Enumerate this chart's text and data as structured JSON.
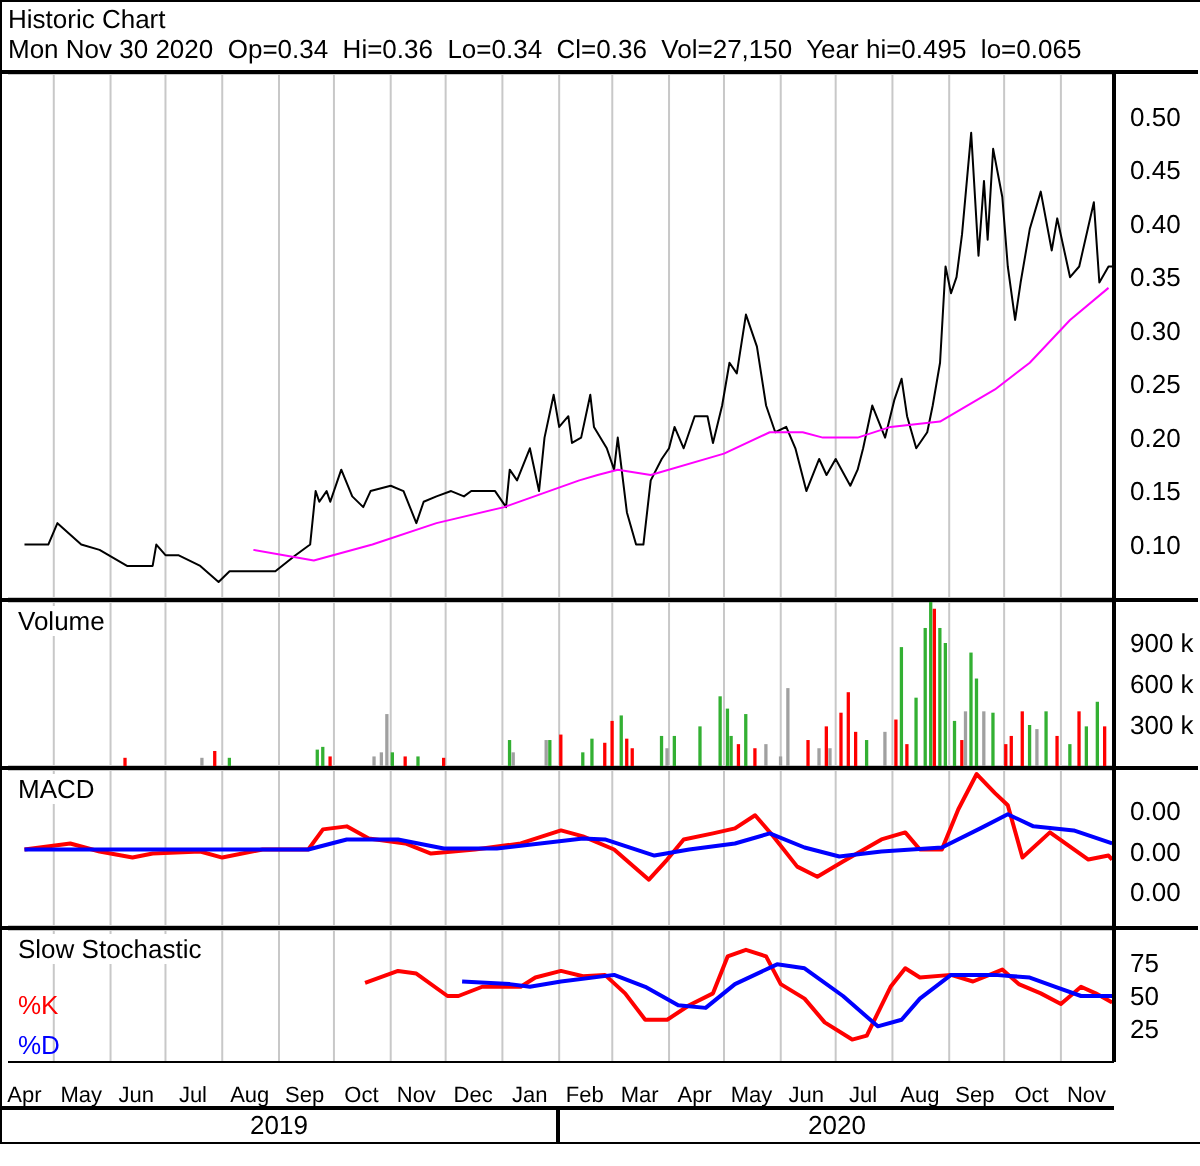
{
  "chart_data": [
    {
      "type": "line",
      "title": "Historic Chart",
      "subtitle": "Mon Nov 30 2020  Op=0.34  Hi=0.36  Lo=0.34  Cl=0.36  Vol=27,150  Year hi=0.495  lo=0.065",
      "grid": true,
      "tick_labels": "y",
      "xlim": [
        "2019-04-06",
        "2020-11-30"
      ],
      "xticks": [
        {
          "value": "2019-05-01",
          "label": null
        },
        {
          "value": "2019-06-01",
          "label": null
        },
        {
          "value": "2019-07-01",
          "label": null
        },
        {
          "value": "2019-08-01",
          "label": null
        },
        {
          "value": "2019-09-01",
          "label": null
        },
        {
          "value": "2019-10-01",
          "label": null
        },
        {
          "value": "2019-11-01",
          "label": null
        },
        {
          "value": "2019-12-01",
          "label": null
        },
        {
          "value": "2020-01-01",
          "label": null
        },
        {
          "value": "2020-02-01",
          "label": null
        },
        {
          "value": "2020-03-01",
          "label": null
        },
        {
          "value": "2020-04-01",
          "label": null
        },
        {
          "value": "2020-05-01",
          "label": null
        },
        {
          "value": "2020-06-01",
          "label": null
        },
        {
          "value": "2020-07-01",
          "label": null
        },
        {
          "value": "2020-08-01",
          "label": null
        },
        {
          "value": "2020-09-01",
          "label": null
        },
        {
          "value": "2020-10-01",
          "label": null
        },
        {
          "value": "2020-11-01",
          "label": null
        }
      ],
      "ylim": [
        0.05,
        0.54
      ],
      "yticks": [
        {
          "value": 0.1,
          "label": "0.10"
        },
        {
          "value": 0.15,
          "label": "0.15"
        },
        {
          "value": 0.2,
          "label": "0.20"
        },
        {
          "value": 0.25,
          "label": "0.25"
        },
        {
          "value": 0.3,
          "label": "0.30"
        },
        {
          "value": 0.35,
          "label": "0.35"
        },
        {
          "value": 0.4,
          "label": "0.40"
        },
        {
          "value": 0.45,
          "label": "0.45"
        },
        {
          "value": 0.5,
          "label": "0.50"
        }
      ],
      "series": [
        {
          "color": "#000000",
          "x": [
            "2019-04-15",
            "2019-04-28",
            "2019-05-03",
            "2019-05-16",
            "2019-05-26",
            "2019-06-10",
            "2019-06-24",
            "2019-06-26",
            "2019-07-01",
            "2019-07-08",
            "2019-07-20",
            "2019-07-30",
            "2019-08-05",
            "2019-08-30",
            "2019-09-10",
            "2019-09-18",
            "2019-09-21",
            "2019-09-23",
            "2019-09-27",
            "2019-09-29",
            "2019-10-05",
            "2019-10-11",
            "2019-10-17",
            "2019-10-21",
            "2019-11-01",
            "2019-11-08",
            "2019-11-15",
            "2019-11-19",
            "2019-11-26",
            "2019-12-04",
            "2019-12-11",
            "2019-12-15",
            "2019-12-28",
            "2020-01-03",
            "2020-01-05",
            "2020-01-09",
            "2020-01-16",
            "2020-01-21",
            "2020-01-24",
            "2020-01-29",
            "2020-02-01",
            "2020-02-06",
            "2020-02-08",
            "2020-02-13",
            "2020-02-18",
            "2020-02-20",
            "2020-02-27",
            "2020-03-02",
            "2020-03-04",
            "2020-03-09",
            "2020-03-14",
            "2020-03-18",
            "2020-03-22",
            "2020-03-28",
            "2020-04-01",
            "2020-04-04",
            "2020-04-09",
            "2020-04-15",
            "2020-04-22",
            "2020-04-25",
            "2020-04-30",
            "2020-05-04",
            "2020-05-08",
            "2020-05-13",
            "2020-05-19",
            "2020-05-24",
            "2020-05-29",
            "2020-06-04",
            "2020-06-09",
            "2020-06-15",
            "2020-06-22",
            "2020-06-26",
            "2020-07-01",
            "2020-07-09",
            "2020-07-13",
            "2020-07-16",
            "2020-07-21",
            "2020-07-28",
            "2020-08-02",
            "2020-08-06",
            "2020-08-09",
            "2020-08-14",
            "2020-08-20",
            "2020-08-23",
            "2020-08-27",
            "2020-08-30",
            "2020-09-02",
            "2020-09-05",
            "2020-09-08",
            "2020-09-13",
            "2020-09-17",
            "2020-09-20",
            "2020-09-22",
            "2020-09-25",
            "2020-09-30",
            "2020-10-03",
            "2020-10-07",
            "2020-10-10",
            "2020-10-15",
            "2020-10-21",
            "2020-10-27",
            "2020-10-30",
            "2020-11-06",
            "2020-11-11",
            "2020-11-19",
            "2020-11-22",
            "2020-11-27",
            "2020-11-30"
          ],
          "values": [
            0.1,
            0.1,
            0.12,
            0.1,
            0.095,
            0.08,
            0.08,
            0.1,
            0.09,
            0.09,
            0.08,
            0.065,
            0.075,
            0.075,
            0.09,
            0.1,
            0.15,
            0.14,
            0.15,
            0.14,
            0.17,
            0.145,
            0.135,
            0.15,
            0.155,
            0.15,
            0.12,
            0.14,
            0.145,
            0.15,
            0.145,
            0.15,
            0.15,
            0.135,
            0.17,
            0.16,
            0.19,
            0.15,
            0.2,
            0.24,
            0.21,
            0.22,
            0.195,
            0.2,
            0.24,
            0.21,
            0.19,
            0.17,
            0.2,
            0.13,
            0.1,
            0.1,
            0.16,
            0.18,
            0.19,
            0.21,
            0.19,
            0.22,
            0.22,
            0.195,
            0.23,
            0.27,
            0.26,
            0.315,
            0.285,
            0.23,
            0.205,
            0.21,
            0.19,
            0.15,
            0.18,
            0.165,
            0.18,
            0.155,
            0.17,
            0.19,
            0.23,
            0.2,
            0.235,
            0.255,
            0.22,
            0.19,
            0.205,
            0.23,
            0.27,
            0.36,
            0.335,
            0.35,
            0.39,
            0.485,
            0.37,
            0.44,
            0.385,
            0.47,
            0.425,
            0.36,
            0.31,
            0.345,
            0.395,
            0.43,
            0.375,
            0.405,
            0.35,
            0.36,
            0.42,
            0.345,
            0.36,
            0.36
          ]
        },
        {
          "color": "#ff00ff",
          "x": [
            "2019-08-18",
            "2019-09-20",
            "2019-10-22",
            "2019-11-26",
            "2020-01-02",
            "2020-02-12",
            "2020-02-22",
            "2020-03-04",
            "2020-03-22",
            "2020-05-01",
            "2020-05-26",
            "2020-06-13",
            "2020-06-24",
            "2020-07-13",
            "2020-07-31",
            "2020-08-27",
            "2020-09-26",
            "2020-10-15",
            "2020-11-06",
            "2020-11-27"
          ],
          "values": [
            0.095,
            0.085,
            0.1,
            0.12,
            0.135,
            0.16,
            0.165,
            0.17,
            0.165,
            0.185,
            0.205,
            0.205,
            0.2,
            0.2,
            0.21,
            0.215,
            0.245,
            0.27,
            0.31,
            0.34
          ]
        }
      ]
    },
    {
      "type": "bar",
      "title": "Volume",
      "grid": true,
      "tick_labels": "y",
      "xlim": [
        "2019-04-06",
        "2020-11-30"
      ],
      "xticks": [
        {
          "value": "2019-05-01",
          "label": null
        },
        {
          "value": "2019-06-01",
          "label": null
        },
        {
          "value": "2019-07-01",
          "label": null
        },
        {
          "value": "2019-08-01",
          "label": null
        },
        {
          "value": "2019-09-01",
          "label": null
        },
        {
          "value": "2019-10-01",
          "label": null
        },
        {
          "value": "2019-11-01",
          "label": null
        },
        {
          "value": "2019-12-01",
          "label": null
        },
        {
          "value": "2020-01-01",
          "label": null
        },
        {
          "value": "2020-02-01",
          "label": null
        },
        {
          "value": "2020-03-01",
          "label": null
        },
        {
          "value": "2020-04-01",
          "label": null
        },
        {
          "value": "2020-05-01",
          "label": null
        },
        {
          "value": "2020-06-01",
          "label": null
        },
        {
          "value": "2020-07-01",
          "label": null
        },
        {
          "value": "2020-08-01",
          "label": null
        },
        {
          "value": "2020-09-01",
          "label": null
        },
        {
          "value": "2020-10-01",
          "label": null
        },
        {
          "value": "2020-11-01",
          "label": null
        }
      ],
      "ylim": [
        0,
        1200000
      ],
      "yticks": [
        {
          "value": 300000,
          "label": "300 k"
        },
        {
          "value": 600000,
          "label": "600 k"
        },
        {
          "value": 900000,
          "label": "900 k"
        }
      ],
      "x": [
        "2019-06-09",
        "2019-07-21",
        "2019-07-28",
        "2019-08-05",
        "2019-09-22",
        "2019-09-25",
        "2019-09-29",
        "2019-10-23",
        "2019-10-27",
        "2019-10-30",
        "2019-11-02",
        "2019-11-09",
        "2019-11-16",
        "2019-11-30",
        "2020-01-05",
        "2020-01-07",
        "2020-01-25",
        "2020-01-27",
        "2020-02-02",
        "2020-02-14",
        "2020-02-19",
        "2020-02-26",
        "2020-03-01",
        "2020-03-06",
        "2020-03-09",
        "2020-03-12",
        "2020-03-28",
        "2020-03-31",
        "2020-04-04",
        "2020-04-18",
        "2020-04-29",
        "2020-05-03",
        "2020-05-05",
        "2020-05-09",
        "2020-05-13",
        "2020-05-18",
        "2020-05-24",
        "2020-06-01",
        "2020-06-05",
        "2020-06-16",
        "2020-06-22",
        "2020-06-26",
        "2020-06-28",
        "2020-07-04",
        "2020-07-08",
        "2020-07-12",
        "2020-07-18",
        "2020-07-28",
        "2020-08-03",
        "2020-08-06",
        "2020-08-09",
        "2020-08-14",
        "2020-08-19",
        "2020-08-22",
        "2020-08-24",
        "2020-08-27",
        "2020-08-30",
        "2020-09-04",
        "2020-09-08",
        "2020-09-10",
        "2020-09-13",
        "2020-09-16",
        "2020-09-20",
        "2020-09-25",
        "2020-10-02",
        "2020-10-05",
        "2020-10-11",
        "2020-10-15",
        "2020-10-19",
        "2020-10-24",
        "2020-10-30",
        "2020-11-06",
        "2020-11-11",
        "2020-11-15",
        "2020-11-21",
        "2020-11-25"
      ],
      "values": [
        60000,
        60000,
        110000,
        60000,
        120000,
        140000,
        70000,
        70000,
        100000,
        380000,
        100000,
        70000,
        70000,
        60000,
        190000,
        100000,
        190000,
        190000,
        230000,
        100000,
        200000,
        170000,
        330000,
        370000,
        200000,
        130000,
        220000,
        130000,
        220000,
        290000,
        510000,
        420000,
        220000,
        160000,
        380000,
        130000,
        160000,
        70000,
        570000,
        190000,
        130000,
        290000,
        130000,
        390000,
        540000,
        250000,
        190000,
        250000,
        340000,
        870000,
        160000,
        500000,
        1010000,
        1200000,
        1150000,
        1010000,
        900000,
        330000,
        190000,
        400000,
        830000,
        640000,
        400000,
        390000,
        160000,
        220000,
        400000,
        300000,
        270000,
        400000,
        220000,
        160000,
        400000,
        290000,
        470000,
        290000
      ],
      "colors": [
        "#ff0000",
        "#a0a0a0",
        "#ff0000",
        "#33b033",
        "#33b033",
        "#33b033",
        "#ff0000",
        "#a0a0a0",
        "#a0a0a0",
        "#a0a0a0",
        "#33b033",
        "#ff0000",
        "#33b033",
        "#ff0000",
        "#33b033",
        "#a0a0a0",
        "#a0a0a0",
        "#33b033",
        "#ff0000",
        "#33b033",
        "#33b033",
        "#ff0000",
        "#ff0000",
        "#33b033",
        "#ff0000",
        "#ff0000",
        "#33b033",
        "#a0a0a0",
        "#33b033",
        "#33b033",
        "#33b033",
        "#33b033",
        "#33b033",
        "#ff0000",
        "#33b033",
        "#ff0000",
        "#a0a0a0",
        "#a0a0a0",
        "#a0a0a0",
        "#ff0000",
        "#a0a0a0",
        "#ff0000",
        "#a0a0a0",
        "#ff0000",
        "#ff0000",
        "#ff0000",
        "#33b033",
        "#a0a0a0",
        "#ff0000",
        "#33b033",
        "#ff0000",
        "#33b033",
        "#33b033",
        "#33b033",
        "#ff0000",
        "#33b033",
        "#33b033",
        "#33b033",
        "#ff0000",
        "#a0a0a0",
        "#33b033",
        "#33b033",
        "#a0a0a0",
        "#33b033",
        "#ff0000",
        "#ff0000",
        "#ff0000",
        "#33b033",
        "#a0a0a0",
        "#33b033",
        "#ff0000",
        "#33b033",
        "#ff0000",
        "#33b033",
        "#33b033",
        "#ff0000"
      ]
    },
    {
      "type": "line",
      "title": "MACD",
      "grid": true,
      "tick_labels": "y",
      "xlim": [
        "2019-04-06",
        "2020-11-30"
      ],
      "xticks": [
        {
          "value": "2019-05-01",
          "label": null
        },
        {
          "value": "2019-06-01",
          "label": null
        },
        {
          "value": "2019-07-01",
          "label": null
        },
        {
          "value": "2019-08-01",
          "label": null
        },
        {
          "value": "2019-09-01",
          "label": null
        },
        {
          "value": "2019-10-01",
          "label": null
        },
        {
          "value": "2019-11-01",
          "label": null
        },
        {
          "value": "2019-12-01",
          "label": null
        },
        {
          "value": "2020-01-01",
          "label": null
        },
        {
          "value": "2020-02-01",
          "label": null
        },
        {
          "value": "2020-03-01",
          "label": null
        },
        {
          "value": "2020-04-01",
          "label": null
        },
        {
          "value": "2020-05-01",
          "label": null
        },
        {
          "value": "2020-06-01",
          "label": null
        },
        {
          "value": "2020-07-01",
          "label": null
        },
        {
          "value": "2020-08-01",
          "label": null
        },
        {
          "value": "2020-09-01",
          "label": null
        },
        {
          "value": "2020-10-01",
          "label": null
        },
        {
          "value": "2020-11-01",
          "label": null
        }
      ],
      "ylim": [
        -0.0074,
        0.0081
      ],
      "yticks": [
        {
          "value": 0.004,
          "label": "0.00"
        },
        {
          "value": 0,
          "label": "0.00"
        },
        {
          "value": -0.004,
          "label": "0.00"
        }
      ],
      "series": [
        {
          "color": "#ff0000",
          "x": [
            "2019-04-15",
            "2019-05-10",
            "2019-05-26",
            "2019-06-13",
            "2019-06-24",
            "2019-07-20",
            "2019-08-01",
            "2019-08-23",
            "2019-09-17",
            "2019-09-25",
            "2019-10-08",
            "2019-10-20",
            "2019-11-09",
            "2019-11-23",
            "2019-12-17",
            "2020-01-11",
            "2020-02-02",
            "2020-02-14",
            "2020-03-02",
            "2020-03-21",
            "2020-03-31",
            "2020-04-09",
            "2020-04-25",
            "2020-05-07",
            "2020-05-18",
            "2020-05-28",
            "2020-06-10",
            "2020-06-21",
            "2020-07-05",
            "2020-07-26",
            "2020-08-08",
            "2020-08-16",
            "2020-08-28",
            "2020-09-06",
            "2020-09-16",
            "2020-09-26",
            "2020-10-03",
            "2020-10-11",
            "2020-10-26",
            "2020-11-16",
            "2020-11-27",
            "2020-11-29"
          ],
          "values": [
            0.0002,
            0.0008,
            0,
            -0.0006,
            -0.0002,
            0,
            -0.0006,
            0.0002,
            0.0002,
            0.0022,
            0.0025,
            0.0013,
            0.0008,
            -0.0002,
            0.0002,
            0.0008,
            0.0021,
            0.0015,
            0.0002,
            -0.0028,
            -0.0008,
            0.0012,
            0.0018,
            0.0023,
            0.0036,
            0.0015,
            -0.0015,
            -0.0025,
            -0.001,
            0.0012,
            0.0019,
            0.0002,
            0.0002,
            0.0042,
            0.0077,
            0.0058,
            0.0046,
            -0.0006,
            0.0019,
            -0.0008,
            -0.0004,
            -0.0008
          ]
        },
        {
          "color": "#0000ff",
          "x": [
            "2019-04-15",
            "2019-09-17",
            "2019-10-08",
            "2019-11-05",
            "2019-11-30",
            "2019-12-29",
            "2020-02-14",
            "2020-02-26",
            "2020-03-24",
            "2020-04-12",
            "2020-05-07",
            "2020-05-26",
            "2020-06-14",
            "2020-07-03",
            "2020-07-26",
            "2020-08-28",
            "2020-09-18",
            "2020-10-03",
            "2020-10-17",
            "2020-11-08",
            "2020-11-29"
          ],
          "values": [
            0.0002,
            0.0002,
            0.0012,
            0.0012,
            0.0003,
            0.0003,
            0.0013,
            0.0012,
            -0.0004,
            0.0002,
            0.0008,
            0.0018,
            0.0004,
            -0.0005,
            0,
            0.0004,
            0.0023,
            0.0037,
            0.0025,
            0.0021,
            0.0008
          ]
        }
      ]
    },
    {
      "type": "line",
      "title": "Slow Stochastic",
      "grid": true,
      "legend": "left",
      "xlim": [
        "2019-04-06",
        "2020-11-30"
      ],
      "xticks": [
        {
          "value": "2019-04-15",
          "label": "Apr"
        },
        {
          "value": "2019-05-01",
          "label": null
        },
        {
          "value": "2019-05-16",
          "label": "May"
        },
        {
          "value": "2019-06-01",
          "label": null
        },
        {
          "value": "2019-06-15",
          "label": "Jun"
        },
        {
          "value": "2019-07-01",
          "label": null
        },
        {
          "value": "2019-07-16",
          "label": "Jul"
        },
        {
          "value": "2019-08-01",
          "label": null
        },
        {
          "value": "2019-08-16",
          "label": "Aug"
        },
        {
          "value": "2019-09-01",
          "label": null
        },
        {
          "value": "2019-09-15",
          "label": "Sep"
        },
        {
          "value": "2019-10-01",
          "label": null
        },
        {
          "value": "2019-10-16",
          "label": "Oct"
        },
        {
          "value": "2019-11-01",
          "label": null
        },
        {
          "value": "2019-11-15",
          "label": "Nov"
        },
        {
          "value": "2019-12-01",
          "label": null
        },
        {
          "value": "2019-12-16",
          "label": "Dec"
        },
        {
          "value": "2020-01-01",
          "label": null
        },
        {
          "value": "2020-01-16",
          "label": "Jan"
        },
        {
          "value": "2020-02-01",
          "label": null
        },
        {
          "value": "2020-02-15",
          "label": "Feb"
        },
        {
          "value": "2020-03-01",
          "label": null
        },
        {
          "value": "2020-03-16",
          "label": "Mar"
        },
        {
          "value": "2020-04-01",
          "label": null
        },
        {
          "value": "2020-04-15",
          "label": "Apr"
        },
        {
          "value": "2020-05-01",
          "label": null
        },
        {
          "value": "2020-05-16",
          "label": "May"
        },
        {
          "value": "2020-06-01",
          "label": null
        },
        {
          "value": "2020-06-15",
          "label": "Jun"
        },
        {
          "value": "2020-07-01",
          "label": null
        },
        {
          "value": "2020-07-16",
          "label": "Jul"
        },
        {
          "value": "2020-08-01",
          "label": null
        },
        {
          "value": "2020-08-16",
          "label": "Aug"
        },
        {
          "value": "2020-09-01",
          "label": null
        },
        {
          "value": "2020-09-15",
          "label": "Sep"
        },
        {
          "value": "2020-10-01",
          "label": null
        },
        {
          "value": "2020-10-16",
          "label": "Oct"
        },
        {
          "value": "2020-11-01",
          "label": null
        },
        {
          "value": "2020-11-15",
          "label": "Nov"
        }
      ],
      "ylim": [
        0,
        100
      ],
      "yticks": [
        25,
        50,
        75
      ],
      "annotations": [
        "2019",
        "2020"
      ],
      "series": [
        {
          "name": "%K",
          "color": "#ff0000",
          "x": [
            "2019-10-18",
            "2019-11-05",
            "2019-11-15",
            "2019-12-02",
            "2019-12-08",
            "2019-12-21",
            "2020-01-11",
            "2020-01-19",
            "2020-02-02",
            "2020-02-14",
            "2020-02-26",
            "2020-03-08",
            "2020-03-19",
            "2020-03-31",
            "2020-04-12",
            "2020-04-25",
            "2020-05-03",
            "2020-05-13",
            "2020-05-24",
            "2020-06-01",
            "2020-06-14",
            "2020-06-25",
            "2020-07-10",
            "2020-07-18",
            "2020-07-31",
            "2020-08-08",
            "2020-08-16",
            "2020-09-02",
            "2020-09-14",
            "2020-09-30",
            "2020-10-09",
            "2020-10-21",
            "2020-11-01",
            "2020-11-12",
            "2020-11-20",
            "2020-11-29"
          ],
          "values": [
            60,
            69,
            67,
            50,
            50,
            57,
            57,
            64,
            69,
            65,
            66,
            52,
            32,
            32,
            43,
            52,
            80,
            85,
            80,
            59,
            48,
            30,
            17,
            20,
            57,
            71,
            64,
            66,
            61,
            70,
            59,
            52,
            44,
            57,
            52,
            45
          ]
        },
        {
          "name": "%D",
          "color": "#0000ff",
          "x": [
            "2019-12-10",
            "2020-01-05",
            "2020-01-16",
            "2020-02-02",
            "2020-03-02",
            "2020-03-19",
            "2020-04-06",
            "2020-04-21",
            "2020-05-07",
            "2020-05-30",
            "2020-06-14",
            "2020-07-05",
            "2020-07-24",
            "2020-08-06",
            "2020-08-16",
            "2020-09-02",
            "2020-09-26",
            "2020-10-15",
            "2020-10-29",
            "2020-11-12",
            "2020-11-29"
          ],
          "values": [
            61,
            59,
            57,
            61,
            66,
            57,
            43,
            41,
            59,
            74,
            71,
            50,
            27,
            32,
            48,
            66,
            66,
            64,
            57,
            50,
            50
          ]
        }
      ]
    }
  ]
}
